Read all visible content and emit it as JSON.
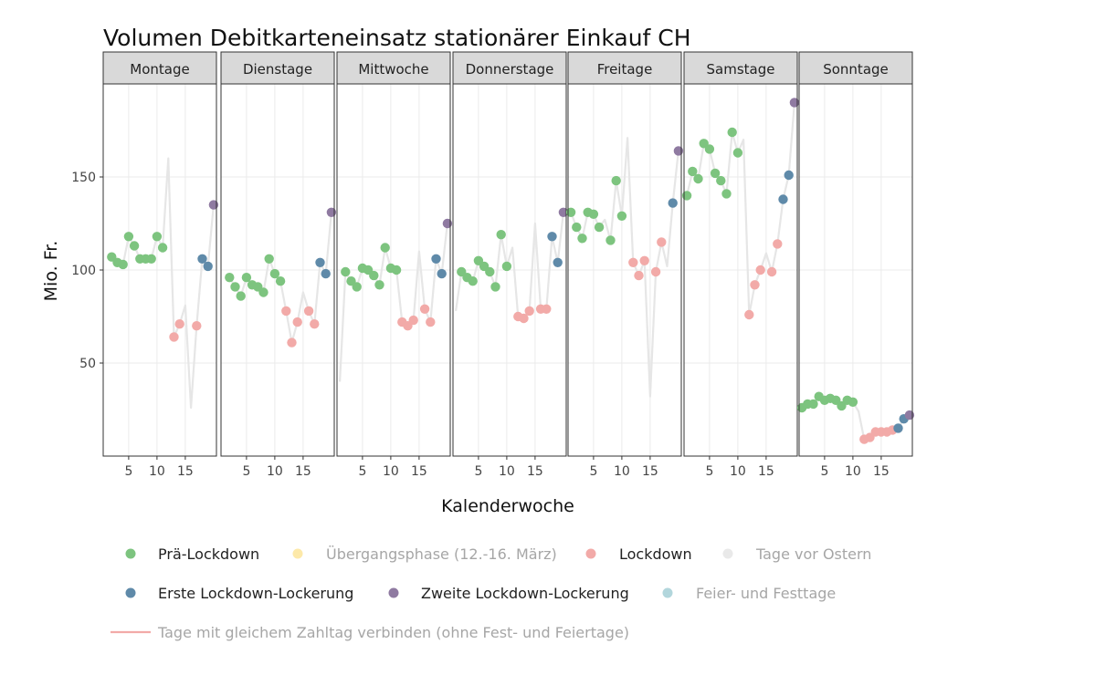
{
  "chart_data": {
    "type": "scatter",
    "title": "Volumen Debitkarteneinsatz stationärer Einkauf CH",
    "xlabel": "Kalenderwoche",
    "ylabel": "Mio. Fr.",
    "xlim": [
      0.5,
      20.5
    ],
    "ylim": [
      0,
      200
    ],
    "x_ticks": [
      5,
      10,
      15
    ],
    "y_ticks": [
      50,
      100,
      150
    ],
    "grid": true,
    "legend_position": "bottom",
    "colors": {
      "pre": "#7dc47f",
      "trans": "#fde9a9",
      "lock": "#f2aaa8",
      "easter": "#e9e9e9",
      "first": "#5f8aa9",
      "second": "#8f7aa1",
      "holiday": "#b2d6dc",
      "line": "#e6e6e6",
      "strip_fill": "#d9d9d9",
      "grid": "#ebebeb"
    },
    "legend": [
      {
        "key": "pre",
        "label": "Prä-Lockdown",
        "active": true
      },
      {
        "key": "trans",
        "label": "Übergangsphase (12.-16. März)",
        "active": false
      },
      {
        "key": "lock",
        "label": "Lockdown",
        "active": true
      },
      {
        "key": "easter",
        "label": "Tage vor Ostern",
        "active": false
      },
      {
        "key": "first",
        "label": "Erste Lockdown-Lockerung",
        "active": true
      },
      {
        "key": "second",
        "label": "Zweite Lockdown-Lockerung",
        "active": true
      },
      {
        "key": "holiday",
        "label": "Feier- und Festtage",
        "active": false
      }
    ],
    "line_legend": {
      "label": "Tage mit gleichem Zahltag  verbinden (ohne Fest- und Feiertage)",
      "color": "#f2aaa8"
    },
    "panels": [
      {
        "name": "Montage",
        "line": [
          [
            2,
            107
          ],
          [
            3,
            104
          ],
          [
            4,
            103
          ],
          [
            5,
            118
          ],
          [
            6,
            113
          ],
          [
            7,
            106
          ],
          [
            8,
            106
          ],
          [
            9,
            106
          ],
          [
            10,
            118
          ],
          [
            11,
            112
          ],
          [
            12,
            160
          ],
          [
            13,
            64
          ],
          [
            14,
            71
          ],
          [
            15,
            81
          ],
          [
            16,
            26
          ],
          [
            17,
            70
          ],
          [
            18,
            106
          ],
          [
            19,
            102
          ],
          [
            20,
            135
          ]
        ],
        "points": [
          [
            2,
            107,
            "pre"
          ],
          [
            3,
            104,
            "pre"
          ],
          [
            4,
            103,
            "pre"
          ],
          [
            5,
            118,
            "pre"
          ],
          [
            6,
            113,
            "pre"
          ],
          [
            7,
            106,
            "pre"
          ],
          [
            8,
            106,
            "pre"
          ],
          [
            9,
            106,
            "pre"
          ],
          [
            10,
            118,
            "pre"
          ],
          [
            11,
            112,
            "pre"
          ],
          [
            13,
            64,
            "lock"
          ],
          [
            14,
            71,
            "lock"
          ],
          [
            17,
            70,
            "lock"
          ],
          [
            18,
            106,
            "first"
          ],
          [
            19,
            102,
            "first"
          ],
          [
            20,
            135,
            "second"
          ]
        ]
      },
      {
        "name": "Dienstage",
        "line": [
          [
            2,
            96
          ],
          [
            3,
            91
          ],
          [
            4,
            86
          ],
          [
            5,
            96
          ],
          [
            6,
            92
          ],
          [
            7,
            91
          ],
          [
            8,
            88
          ],
          [
            9,
            106
          ],
          [
            10,
            98
          ],
          [
            11,
            94
          ],
          [
            12,
            78
          ],
          [
            13,
            61
          ],
          [
            14,
            72
          ],
          [
            15,
            88
          ],
          [
            16,
            78
          ],
          [
            17,
            71
          ],
          [
            18,
            104
          ],
          [
            19,
            98
          ],
          [
            20,
            131
          ]
        ],
        "points": [
          [
            2,
            96,
            "pre"
          ],
          [
            3,
            91,
            "pre"
          ],
          [
            4,
            86,
            "pre"
          ],
          [
            5,
            96,
            "pre"
          ],
          [
            6,
            92,
            "pre"
          ],
          [
            7,
            91,
            "pre"
          ],
          [
            8,
            88,
            "pre"
          ],
          [
            9,
            106,
            "pre"
          ],
          [
            10,
            98,
            "pre"
          ],
          [
            11,
            94,
            "pre"
          ],
          [
            12,
            78,
            "lock"
          ],
          [
            13,
            61,
            "lock"
          ],
          [
            14,
            72,
            "lock"
          ],
          [
            16,
            78,
            "lock"
          ],
          [
            17,
            71,
            "lock"
          ],
          [
            18,
            104,
            "first"
          ],
          [
            19,
            98,
            "first"
          ],
          [
            20,
            131,
            "second"
          ]
        ]
      },
      {
        "name": "Mittwoche",
        "line": [
          [
            1,
            40
          ],
          [
            2,
            99
          ],
          [
            3,
            94
          ],
          [
            4,
            91
          ],
          [
            5,
            101
          ],
          [
            6,
            100
          ],
          [
            7,
            97
          ],
          [
            8,
            92
          ],
          [
            9,
            112
          ],
          [
            10,
            101
          ],
          [
            11,
            100
          ],
          [
            12,
            72
          ],
          [
            13,
            70
          ],
          [
            14,
            73
          ],
          [
            15,
            110
          ],
          [
            16,
            79
          ],
          [
            17,
            72
          ],
          [
            18,
            106
          ],
          [
            19,
            98
          ],
          [
            20,
            125
          ]
        ],
        "points": [
          [
            2,
            99,
            "pre"
          ],
          [
            3,
            94,
            "pre"
          ],
          [
            4,
            91,
            "pre"
          ],
          [
            5,
            101,
            "pre"
          ],
          [
            6,
            100,
            "pre"
          ],
          [
            7,
            97,
            "pre"
          ],
          [
            8,
            92,
            "pre"
          ],
          [
            9,
            112,
            "pre"
          ],
          [
            10,
            101,
            "pre"
          ],
          [
            11,
            100,
            "pre"
          ],
          [
            12,
            72,
            "lock"
          ],
          [
            13,
            70,
            "lock"
          ],
          [
            14,
            73,
            "lock"
          ],
          [
            16,
            79,
            "lock"
          ],
          [
            17,
            72,
            "lock"
          ],
          [
            18,
            106,
            "first"
          ],
          [
            19,
            98,
            "first"
          ],
          [
            20,
            125,
            "second"
          ]
        ]
      },
      {
        "name": "Donnerstage",
        "line": [
          [
            1,
            78
          ],
          [
            2,
            99
          ],
          [
            3,
            96
          ],
          [
            4,
            94
          ],
          [
            5,
            105
          ],
          [
            6,
            102
          ],
          [
            7,
            99
          ],
          [
            8,
            91
          ],
          [
            9,
            119
          ],
          [
            10,
            102
          ],
          [
            11,
            112
          ],
          [
            12,
            75
          ],
          [
            13,
            74
          ],
          [
            14,
            78
          ],
          [
            15,
            125
          ],
          [
            16,
            79
          ],
          [
            17,
            79
          ],
          [
            18,
            118
          ],
          [
            19,
            104
          ],
          [
            20,
            131
          ]
        ],
        "points": [
          [
            2,
            99,
            "pre"
          ],
          [
            3,
            96,
            "pre"
          ],
          [
            4,
            94,
            "pre"
          ],
          [
            5,
            105,
            "pre"
          ],
          [
            6,
            102,
            "pre"
          ],
          [
            7,
            99,
            "pre"
          ],
          [
            8,
            91,
            "pre"
          ],
          [
            9,
            119,
            "pre"
          ],
          [
            10,
            102,
            "pre"
          ],
          [
            12,
            75,
            "lock"
          ],
          [
            13,
            74,
            "lock"
          ],
          [
            14,
            78,
            "lock"
          ],
          [
            16,
            79,
            "lock"
          ],
          [
            17,
            79,
            "lock"
          ],
          [
            18,
            118,
            "first"
          ],
          [
            19,
            104,
            "first"
          ],
          [
            20,
            131,
            "second"
          ]
        ]
      },
      {
        "name": "Freitage",
        "line": [
          [
            1,
            131
          ],
          [
            2,
            123
          ],
          [
            3,
            117
          ],
          [
            4,
            131
          ],
          [
            5,
            130
          ],
          [
            6,
            123
          ],
          [
            7,
            127
          ],
          [
            8,
            116
          ],
          [
            9,
            148
          ],
          [
            10,
            129
          ],
          [
            11,
            171
          ],
          [
            12,
            104
          ],
          [
            13,
            97
          ],
          [
            14,
            105
          ],
          [
            15,
            32
          ],
          [
            16,
            99
          ],
          [
            17,
            115
          ],
          [
            18,
            102
          ],
          [
            19,
            136
          ],
          [
            20,
            164
          ]
        ],
        "points": [
          [
            1,
            131,
            "pre"
          ],
          [
            2,
            123,
            "pre"
          ],
          [
            3,
            117,
            "pre"
          ],
          [
            4,
            131,
            "pre"
          ],
          [
            5,
            130,
            "pre"
          ],
          [
            6,
            123,
            "pre"
          ],
          [
            8,
            116,
            "pre"
          ],
          [
            9,
            148,
            "pre"
          ],
          [
            10,
            129,
            "pre"
          ],
          [
            12,
            104,
            "lock"
          ],
          [
            13,
            97,
            "lock"
          ],
          [
            14,
            105,
            "lock"
          ],
          [
            16,
            99,
            "lock"
          ],
          [
            17,
            115,
            "lock"
          ],
          [
            19,
            136,
            "first"
          ],
          [
            20,
            164,
            "second"
          ]
        ]
      },
      {
        "name": "Samstage",
        "line": [
          [
            1,
            140
          ],
          [
            2,
            153
          ],
          [
            3,
            149
          ],
          [
            4,
            168
          ],
          [
            5,
            165
          ],
          [
            6,
            152
          ],
          [
            7,
            148
          ],
          [
            8,
            141
          ],
          [
            9,
            174
          ],
          [
            10,
            163
          ],
          [
            11,
            170
          ],
          [
            12,
            76
          ],
          [
            13,
            92
          ],
          [
            14,
            100
          ],
          [
            15,
            109
          ],
          [
            16,
            99
          ],
          [
            17,
            114
          ],
          [
            18,
            138
          ],
          [
            19,
            151
          ],
          [
            20,
            190
          ]
        ],
        "points": [
          [
            1,
            140,
            "pre"
          ],
          [
            2,
            153,
            "pre"
          ],
          [
            3,
            149,
            "pre"
          ],
          [
            4,
            168,
            "pre"
          ],
          [
            5,
            165,
            "pre"
          ],
          [
            6,
            152,
            "pre"
          ],
          [
            7,
            148,
            "pre"
          ],
          [
            8,
            141,
            "pre"
          ],
          [
            9,
            174,
            "pre"
          ],
          [
            10,
            163,
            "pre"
          ],
          [
            12,
            76,
            "lock"
          ],
          [
            13,
            92,
            "lock"
          ],
          [
            14,
            100,
            "lock"
          ],
          [
            16,
            99,
            "lock"
          ],
          [
            17,
            114,
            "lock"
          ],
          [
            18,
            138,
            "first"
          ],
          [
            19,
            151,
            "first"
          ],
          [
            20,
            190,
            "second"
          ]
        ]
      },
      {
        "name": "Sonntage",
        "line": [
          [
            1,
            26
          ],
          [
            2,
            28
          ],
          [
            3,
            28
          ],
          [
            4,
            32
          ],
          [
            5,
            30
          ],
          [
            6,
            31
          ],
          [
            7,
            30
          ],
          [
            8,
            27
          ],
          [
            9,
            30
          ],
          [
            10,
            29
          ],
          [
            11,
            24
          ],
          [
            12,
            9
          ],
          [
            13,
            10
          ],
          [
            14,
            13
          ],
          [
            15,
            13
          ],
          [
            16,
            13
          ],
          [
            17,
            14
          ],
          [
            18,
            15
          ],
          [
            19,
            20
          ],
          [
            20,
            22
          ]
        ],
        "points": [
          [
            1,
            26,
            "pre"
          ],
          [
            2,
            28,
            "pre"
          ],
          [
            3,
            28,
            "pre"
          ],
          [
            4,
            32,
            "pre"
          ],
          [
            5,
            30,
            "pre"
          ],
          [
            6,
            31,
            "pre"
          ],
          [
            7,
            30,
            "pre"
          ],
          [
            8,
            27,
            "pre"
          ],
          [
            9,
            30,
            "pre"
          ],
          [
            10,
            29,
            "pre"
          ],
          [
            12,
            9,
            "lock"
          ],
          [
            13,
            10,
            "lock"
          ],
          [
            14,
            13,
            "lock"
          ],
          [
            15,
            13,
            "lock"
          ],
          [
            16,
            13,
            "lock"
          ],
          [
            17,
            14,
            "lock"
          ],
          [
            18,
            15,
            "first"
          ],
          [
            19,
            20,
            "first"
          ],
          [
            20,
            22,
            "second"
          ]
        ]
      }
    ]
  }
}
